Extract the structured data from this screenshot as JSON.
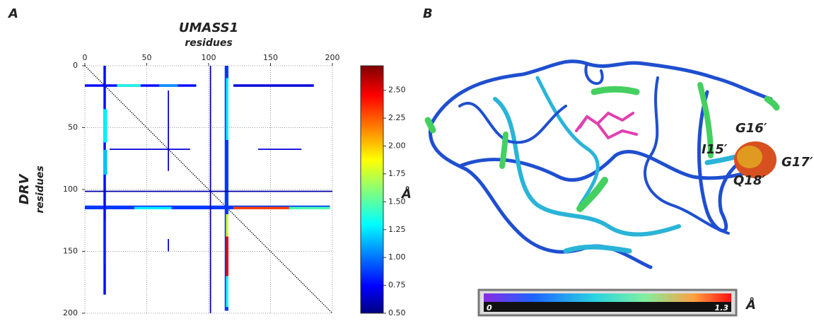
{
  "panel_labels": [
    "A",
    "B"
  ],
  "chart_data": {
    "type": "heatmap",
    "title": "UMASS1",
    "x_label": "residues",
    "y_label": "DRV",
    "y_sublabel": "residues",
    "xlim": [
      0,
      200
    ],
    "ylim": [
      0,
      200
    ],
    "y_inverted": true,
    "xticks": [
      0,
      50,
      100,
      150,
      200
    ],
    "yticks": [
      0,
      50,
      100,
      150,
      200
    ],
    "grid": true,
    "colormap": "jet",
    "colorbar": {
      "label": "Å",
      "lim": [
        0.5,
        2.72
      ],
      "ticks": [
        {
          "value": 0.5,
          "label": "0.50"
        },
        {
          "value": 0.75,
          "label": "0.75"
        },
        {
          "value": 1.0,
          "label": "1.00"
        },
        {
          "value": 1.25,
          "label": "1.25"
        },
        {
          "value": 1.5,
          "label": "1.50"
        },
        {
          "value": 1.75,
          "label": "1.75"
        },
        {
          "value": 2.0,
          "label": "2.00"
        },
        {
          "value": 2.25,
          "label": "2.25"
        },
        {
          "value": 2.5,
          "label": "2.50"
        }
      ]
    },
    "cells": [
      {
        "x0": 113,
        "x1": 116,
        "y0": 0,
        "y1": 198,
        "value": 0.9
      },
      {
        "x0": 114,
        "x1": 116,
        "y0": 10,
        "y1": 60,
        "value": 1.3
      },
      {
        "x0": 114,
        "x1": 116,
        "y0": 120,
        "y1": 138,
        "value": 1.8
      },
      {
        "x0": 114,
        "x1": 116,
        "y0": 138,
        "y1": 170,
        "value": 2.5
      },
      {
        "x0": 114,
        "x1": 116,
        "y0": 170,
        "y1": 195,
        "value": 1.4
      },
      {
        "x0": 0,
        "x1": 198,
        "y0": 113,
        "y1": 116,
        "value": 0.9
      },
      {
        "x0": 120,
        "x1": 165,
        "y0": 114,
        "y1": 116,
        "value": 2.3
      },
      {
        "x0": 165,
        "x1": 198,
        "y0": 114,
        "y1": 116,
        "value": 1.5
      },
      {
        "x0": 40,
        "x1": 70,
        "y0": 114,
        "y1": 116,
        "value": 1.3
      },
      {
        "x0": 15,
        "x1": 17,
        "y0": 0,
        "y1": 185,
        "value": 0.8
      },
      {
        "x0": 15,
        "x1": 18,
        "y0": 35,
        "y1": 62,
        "value": 1.3
      },
      {
        "x0": 15,
        "x1": 18,
        "y0": 68,
        "y1": 88,
        "value": 1.2
      },
      {
        "x0": 0,
        "x1": 90,
        "y0": 15,
        "y1": 17,
        "value": 0.8
      },
      {
        "x0": 26,
        "x1": 45,
        "y0": 15,
        "y1": 17,
        "value": 1.4
      },
      {
        "x0": 60,
        "x1": 75,
        "y0": 15,
        "y1": 17,
        "value": 1.1
      },
      {
        "x0": 120,
        "x1": 185,
        "y0": 15,
        "y1": 17,
        "value": 0.7
      },
      {
        "x0": 20,
        "x1": 85,
        "y0": 67,
        "y1": 68,
        "value": 0.7
      },
      {
        "x0": 140,
        "x1": 175,
        "y0": 67,
        "y1": 68,
        "value": 0.7
      },
      {
        "x0": 67,
        "x1": 68,
        "y0": 20,
        "y1": 85,
        "value": 0.7
      },
      {
        "x0": 0,
        "x1": 200,
        "y0": 101,
        "y1": 102,
        "value": 0.6
      },
      {
        "x0": 101,
        "x1": 102,
        "y0": 0,
        "y1": 200,
        "value": 0.6
      },
      {
        "x0": 67,
        "x1": 68,
        "y0": 140,
        "y1": 150,
        "value": 0.7
      },
      {
        "x0": 16,
        "x1": 17,
        "y0": 125,
        "y1": 160,
        "value": 0.9
      }
    ]
  },
  "structure": {
    "labels": [
      "G16′",
      "I15′",
      "G17′",
      "Q18′"
    ],
    "colorbar": {
      "min_label": "0",
      "max_label": "1.3",
      "unit": "Å"
    }
  }
}
